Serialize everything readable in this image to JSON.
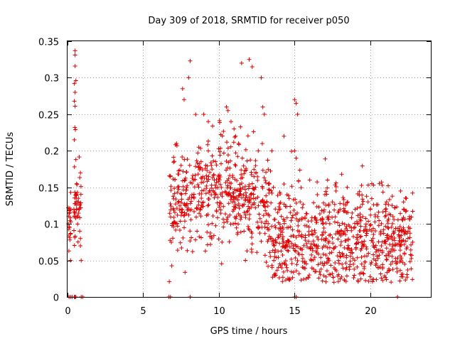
{
  "chart_data": {
    "type": "scatter",
    "title": "Day 309 of 2018, SRMTID for receiver p050",
    "xlabel": "GPS time / hours",
    "ylabel": "SRMTID / TECUs",
    "xlim": [
      0,
      24
    ],
    "ylim": [
      0,
      0.35
    ],
    "xticks": [
      0,
      5,
      10,
      15,
      20
    ],
    "xtick_labels": [
      "0",
      "5",
      "10",
      "15",
      "20"
    ],
    "yticks": [
      0,
      0.05,
      0.1,
      0.15,
      0.2,
      0.25,
      0.3,
      0.35
    ],
    "ytick_labels": [
      "0",
      "0.05",
      "0.1",
      "0.15",
      "0.2",
      "0.25",
      "0.3",
      "0.35"
    ],
    "grid": true,
    "marker": "+",
    "colors": {
      "series": "#e00000"
    },
    "series": [
      {
        "name": "SRMTID",
        "segments": [
          {
            "x_range": [
              0.0,
              0.25
            ],
            "dense": 18,
            "mean": 0.1,
            "spread": 0.02,
            "x": [
              0.05,
              0.1,
              0.15,
              0.2,
              0.05,
              0.12
            ],
            "y": [
              0.122,
              0.118,
              0.078,
              0.05,
              0.1,
              0.095
            ]
          },
          {
            "x_range": [
              0.4,
              0.9
            ],
            "dense": 45,
            "mean": 0.12,
            "spread": 0.025,
            "x": [
              0.5,
              0.5,
              0.5,
              0.55,
              0.45,
              0.5,
              0.45,
              0.5,
              0.48,
              0.52,
              0.45,
              0.55,
              0.6,
              0.65,
              0.7,
              0.75,
              0.8,
              0.85,
              0.85,
              0.9
            ],
            "y": [
              0.337,
              0.331,
              0.316,
              0.296,
              0.292,
              0.28,
              0.268,
              0.261,
              0.232,
              0.229,
              0.215,
              0.188,
              0.155,
              0.143,
              0.13,
              0.12,
              0.09,
              0.08,
              0.07,
              0.05
            ]
          },
          {
            "x_range": [
              6.7,
              22.8
            ],
            "dense": 1300,
            "mean": 0.08,
            "spread": 0.035,
            "x": [
              8.1,
              8.0,
              7.6,
              7.7,
              7.2,
              7.5,
              9.0,
              9.3,
              9.3,
              9.5,
              9.7,
              9.8,
              10.5,
              10.6,
              10.8,
              11.0,
              11.1,
              11.3,
              11.5,
              12.0,
              12.2,
              12.8,
              12.9,
              13.0,
              12.6,
              13.5,
              13.6,
              14.3,
              14.5,
              15.0,
              15.1,
              15.2,
              15.0,
              15.1,
              16.0,
              16.5,
              17.0,
              17.5,
              18.0,
              18.5,
              19.0,
              19.5,
              20.0,
              20.5,
              21.0,
              21.5,
              22.0,
              22.2,
              22.5,
              22.8
            ],
            "y": [
              0.323,
              0.3,
              0.285,
              0.27,
              0.21,
              0.18,
              0.25,
              0.24,
              0.2,
              0.18,
              0.16,
              0.14,
              0.26,
              0.255,
              0.24,
              0.23,
              0.22,
              0.21,
              0.32,
              0.325,
              0.315,
              0.3,
              0.26,
              0.25,
              0.2,
              0.2,
              0.15,
              0.22,
              0.14,
              0.27,
              0.265,
              0.25,
              0.2,
              0.19,
              0.16,
              0.14,
              0.14,
              0.13,
              0.12,
              0.13,
              0.12,
              0.11,
              0.12,
              0.11,
              0.12,
              0.11,
              0.145,
              0.13,
              0.09,
              0.075
            ]
          },
          {
            "x_range": [
              0.0,
              24.0
            ],
            "dense": 0,
            "mean": 0.0,
            "spread": 0.0,
            "x": [
              0.1,
              0.2,
              0.3,
              0.45,
              0.5,
              0.55,
              0.9,
              1.0,
              6.7,
              6.8,
              8.1,
              15.0,
              15.1,
              21.8
            ],
            "y": [
              0,
              0,
              0,
              0,
              0,
              0,
              0,
              0,
              0,
              0,
              0,
              0,
              0,
              0
            ]
          }
        ]
      }
    ]
  }
}
